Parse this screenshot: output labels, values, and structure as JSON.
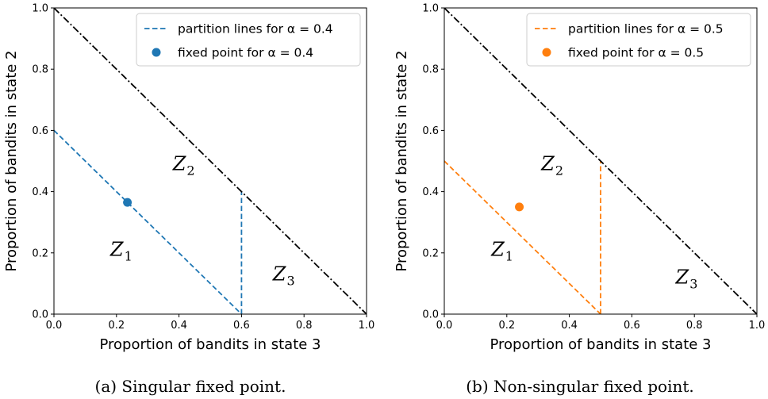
{
  "chart_data": [
    {
      "type": "line",
      "caption": "(a) Singular fixed point.",
      "xlabel": "Proportion of bandits in state 3",
      "ylabel": "Proportion of bandits in state 2",
      "xlim": [
        0.0,
        1.0
      ],
      "ylim": [
        0.0,
        1.0
      ],
      "xticks": [
        "0.0",
        "0.2",
        "0.4",
        "0.6",
        "0.8",
        "1.0"
      ],
      "yticks": [
        "0.0",
        "0.2",
        "0.4",
        "0.6",
        "0.8",
        "1.0"
      ],
      "grid": false,
      "legend_placement": "top-right",
      "color": "#1f77b4",
      "series": [
        {
          "name": "partition lines for α = 0.4",
          "style": "dashed",
          "segments": [
            {
              "x": [
                0.0,
                0.6
              ],
              "y": [
                0.6,
                0.0
              ]
            },
            {
              "x": [
                0.6,
                0.6
              ],
              "y": [
                0.0,
                0.4
              ]
            }
          ]
        },
        {
          "name": "fixed point for α = 0.4",
          "style": "marker",
          "points": [
            {
              "x": 0.235,
              "y": 0.365
            }
          ]
        },
        {
          "style": "dashdot",
          "color": "#000000",
          "segments": [
            {
              "x": [
                0.0,
                1.0
              ],
              "y": [
                1.0,
                0.0
              ]
            }
          ]
        }
      ],
      "annotations": [
        {
          "letter": "Z",
          "sub": "1",
          "x": 0.18,
          "y": 0.19
        },
        {
          "letter": "Z",
          "sub": "2",
          "x": 0.38,
          "y": 0.47
        },
        {
          "letter": "Z",
          "sub": "3",
          "x": 0.7,
          "y": 0.11
        }
      ]
    },
    {
      "type": "line",
      "caption": "(b) Non-singular fixed point.",
      "xlabel": "Proportion of bandits in state 3",
      "ylabel": "Proportion of bandits in state 2",
      "xlim": [
        0.0,
        1.0
      ],
      "ylim": [
        0.0,
        1.0
      ],
      "xticks": [
        "0.0",
        "0.2",
        "0.4",
        "0.6",
        "0.8",
        "1.0"
      ],
      "yticks": [
        "0.0",
        "0.2",
        "0.4",
        "0.6",
        "0.8",
        "1.0"
      ],
      "grid": false,
      "legend_placement": "top-right",
      "color": "#ff7f0e",
      "series": [
        {
          "name": "partition lines for α = 0.5",
          "style": "dashed",
          "segments": [
            {
              "x": [
                0.0,
                0.5
              ],
              "y": [
                0.5,
                0.0
              ]
            },
            {
              "x": [
                0.5,
                0.5
              ],
              "y": [
                0.0,
                0.5
              ]
            }
          ]
        },
        {
          "name": "fixed point for α = 0.5",
          "style": "marker",
          "points": [
            {
              "x": 0.24,
              "y": 0.35
            }
          ]
        },
        {
          "style": "dashdot",
          "color": "#000000",
          "segments": [
            {
              "x": [
                0.0,
                1.0
              ],
              "y": [
                1.0,
                0.0
              ]
            }
          ]
        }
      ],
      "annotations": [
        {
          "letter": "Z",
          "sub": "1",
          "x": 0.15,
          "y": 0.19
        },
        {
          "letter": "Z",
          "sub": "2",
          "x": 0.31,
          "y": 0.47
        },
        {
          "letter": "Z",
          "sub": "3",
          "x": 0.74,
          "y": 0.1
        }
      ]
    }
  ]
}
